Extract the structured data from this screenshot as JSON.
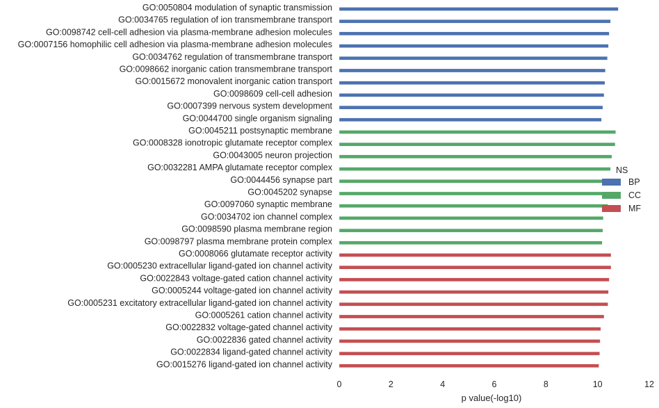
{
  "chart_data": {
    "type": "bar",
    "orientation": "horizontal",
    "xlabel": "p value(-log10)",
    "ylabel": "",
    "xlim": [
      0,
      12
    ],
    "xticks": [
      0,
      2,
      4,
      6,
      8,
      10,
      12
    ],
    "grid": false,
    "legend": {
      "title": "NS",
      "placement": "right",
      "entries": [
        {
          "name": "BP",
          "color": "#4c72b0"
        },
        {
          "name": "CC",
          "color": "#55a868"
        },
        {
          "name": "MF",
          "color": "#c44e52"
        }
      ]
    },
    "series": [
      {
        "name": "BP",
        "color": "#4c72b0",
        "categories": [
          "GO:0050804 modulation of synaptic transmission",
          "GO:0034765 regulation of ion transmembrane transport",
          "GO:0098742 cell-cell adhesion via plasma-membrane adhesion molecules",
          "GO:0007156 homophilic cell adhesion via plasma-membrane adhesion molecules",
          "GO:0034762 regulation of transmembrane transport",
          "GO:0098662 inorganic cation transmembrane transport",
          "GO:0015672 monovalent inorganic cation transport",
          "GO:0098609 cell-cell adhesion",
          "GO:0007399 nervous system development",
          "GO:0044700 single organism signaling"
        ],
        "values": [
          10.8,
          10.5,
          10.45,
          10.42,
          10.38,
          10.3,
          10.28,
          10.25,
          10.2,
          10.15
        ]
      },
      {
        "name": "CC",
        "color": "#55a868",
        "categories": [
          "GO:0045211 postsynaptic membrane",
          "GO:0008328 ionotropic glutamate receptor complex",
          "GO:0043005 neuron projection",
          "GO:0032281 AMPA glutamate receptor complex",
          "GO:0044456 synapse part",
          "GO:0045202 synapse",
          "GO:0097060 synaptic membrane",
          "GO:0034702 ion channel complex",
          "GO:0098590 plasma membrane region",
          "GO:0098797 plasma membrane protein complex"
        ],
        "values": [
          10.7,
          10.68,
          10.55,
          10.5,
          10.45,
          10.42,
          10.4,
          10.22,
          10.2,
          10.18
        ]
      },
      {
        "name": "MF",
        "color": "#c44e52",
        "categories": [
          "GO:0008066 glutamate receptor activity",
          "GO:0005230 extracellular ligand-gated ion channel activity",
          "GO:0022843 voltage-gated cation channel activity",
          "GO:0005244 voltage-gated ion channel activity",
          "GO:0005231 excitatory extracellular ligand-gated ion channel activity",
          "GO:0005261 cation channel activity",
          "GO:0022832 voltage-gated channel activity",
          "GO:0022836 gated channel activity",
          "GO:0022834 ligand-gated channel activity",
          "GO:0015276 ligand-gated ion channel activity"
        ],
        "values": [
          10.52,
          10.52,
          10.45,
          10.42,
          10.4,
          10.25,
          10.12,
          10.1,
          10.08,
          10.05
        ]
      }
    ]
  }
}
